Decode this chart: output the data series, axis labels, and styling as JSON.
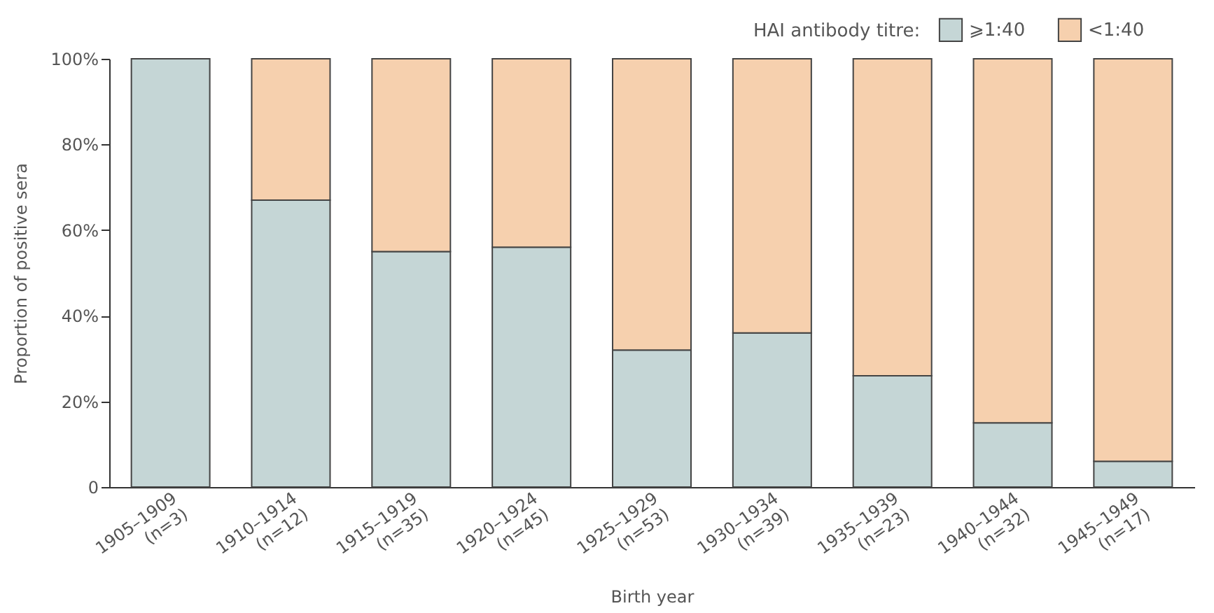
{
  "chart_data": {
    "type": "bar",
    "stacked": true,
    "xlabel": "Birth year",
    "ylabel": "Proportion of positive sera",
    "legend_title": "HAI antibody titre:",
    "categories": [
      "1905–1909 (n=3)",
      "1910–1914 (n=12)",
      "1915–1919 (n=35)",
      "1920–1924 (n=45)",
      "1925–1929 (n=53)",
      "1930–1934 (n=39)",
      "1935–1939 (n=23)",
      "1940–1944 (n=32)",
      "1945–1949 (n=17)"
    ],
    "series": [
      {
        "name": "⩾1:40",
        "color": "#c5d6d6",
        "values": [
          100,
          67,
          55,
          56,
          32,
          36,
          26,
          15,
          6
        ]
      },
      {
        "name": "<1:40",
        "color": "#f6d0ae",
        "values": [
          null,
          33,
          45,
          44,
          68,
          64,
          74,
          85,
          94
        ]
      }
    ],
    "ylim": [
      0,
      100
    ],
    "yticks": [
      {
        "value": 0,
        "label": "0"
      },
      {
        "value": 20,
        "label": "20%"
      },
      {
        "value": 40,
        "label": "40%"
      },
      {
        "value": 60,
        "label": "60%"
      },
      {
        "value": 80,
        "label": "80%"
      },
      {
        "value": 100,
        "label": "100%"
      }
    ],
    "grid": false,
    "legend": "top right"
  }
}
